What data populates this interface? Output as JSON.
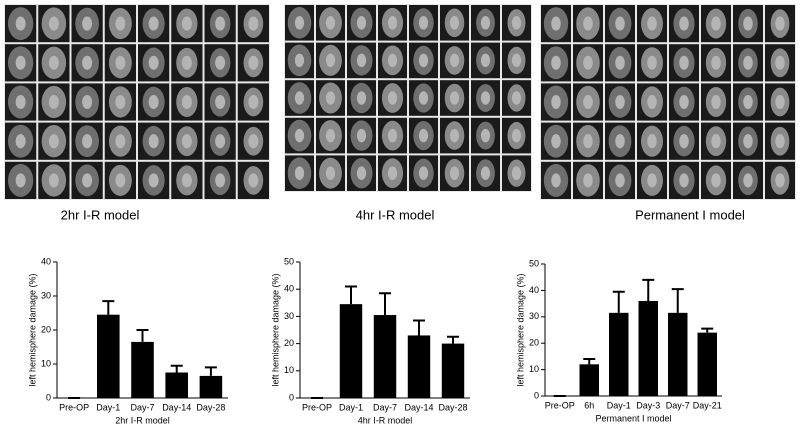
{
  "image_panels": [
    {
      "caption": "2hr I-R model"
    },
    {
      "caption": "4hr I-R model"
    },
    {
      "caption": "Permanent I model"
    }
  ],
  "chart_data": [
    {
      "type": "bar",
      "x_label": "2hr I-R model",
      "y_label": "left hemisphere damage (%)",
      "categories": [
        "Pre-OP",
        "Day-1",
        "Day-7",
        "Day-14",
        "Day-28"
      ],
      "values": [
        0,
        24.5,
        16.5,
        7.5,
        6.5
      ],
      "errors": [
        0,
        4,
        3.5,
        2,
        2.5
      ],
      "color": "#000000",
      "ylim": [
        0,
        40
      ],
      "yticks": [
        0,
        10,
        20,
        30,
        40
      ]
    },
    {
      "type": "bar",
      "x_label": "4hr I-R model",
      "y_label": "left hemisphere damage (%)",
      "categories": [
        "Pre-OP",
        "Day-1",
        "Day-7",
        "Day-14",
        "Day-28"
      ],
      "values": [
        0,
        34.5,
        30.5,
        23,
        20
      ],
      "errors": [
        0,
        6.5,
        8,
        5.5,
        2.5
      ],
      "color": "#000000",
      "ylim": [
        0,
        50
      ],
      "yticks": [
        0,
        10,
        20,
        30,
        40,
        50
      ]
    },
    {
      "type": "bar",
      "x_label": "Permanent I model",
      "y_label": "left hemisphere damage (%)",
      "categories": [
        "Pre-OP",
        "6h",
        "Day-1",
        "Day-3",
        "Day-7",
        "Day-21"
      ],
      "values": [
        0,
        12,
        31.5,
        36,
        31.5,
        24
      ],
      "errors": [
        0,
        2,
        8,
        8,
        9,
        1.5
      ],
      "color": "#000000",
      "ylim": [
        0,
        50
      ],
      "yticks": [
        0,
        10,
        20,
        30,
        40,
        50
      ]
    }
  ]
}
